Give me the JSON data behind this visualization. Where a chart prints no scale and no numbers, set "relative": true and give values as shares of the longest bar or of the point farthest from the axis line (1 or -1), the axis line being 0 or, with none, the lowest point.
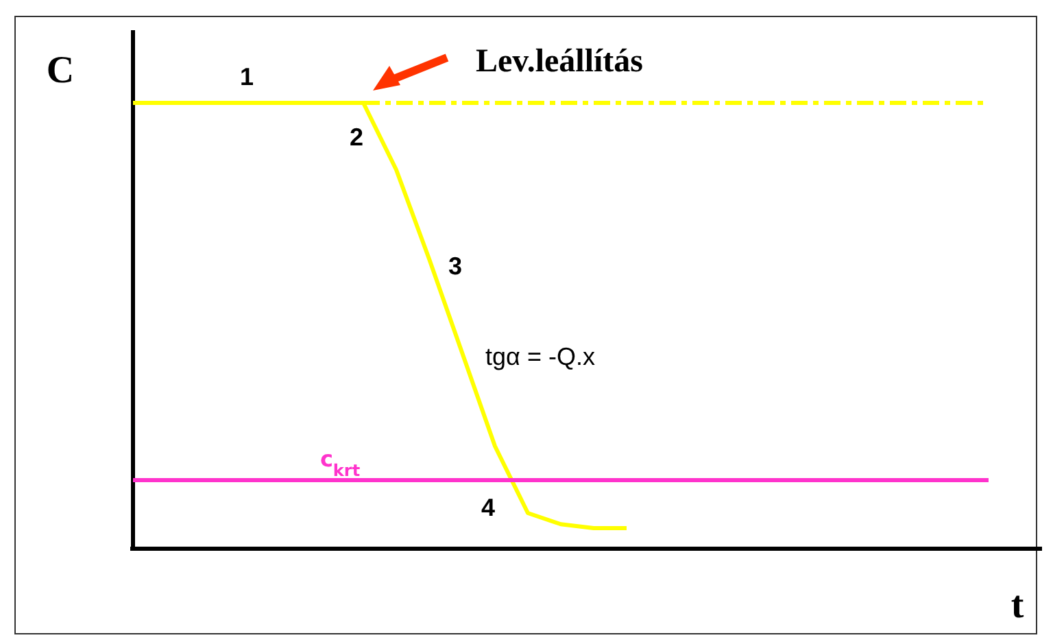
{
  "chart_data": {
    "type": "line",
    "relative": true,
    "xlabel": "t",
    "ylabel": "C",
    "categories": [
      null,
      null,
      null,
      null,
      null,
      null,
      null,
      null,
      null,
      null,
      null,
      null,
      null,
      null,
      null,
      null,
      null,
      null,
      null,
      null,
      null,
      null,
      null,
      null,
      null,
      null,
      null
    ],
    "series": [
      {
        "color": "#ffff00",
        "line_style": "solid",
        "values": [
          1,
          1,
          1,
          1,
          1,
          1,
          1,
          1,
          0.85,
          0.65,
          0.44,
          0.23,
          0.08,
          0.055,
          0.046,
          0.046,
          null,
          null,
          null,
          null,
          null,
          null,
          null,
          null,
          null,
          null,
          null
        ]
      },
      {
        "color": "#ffff00",
        "line_style": "dashed",
        "values": [
          null,
          null,
          null,
          null,
          null,
          null,
          null,
          1,
          1,
          1,
          1,
          1,
          1,
          1,
          1,
          1,
          1,
          1,
          1,
          1,
          1,
          1,
          1,
          1,
          1,
          1,
          1
        ]
      },
      {
        "name": "c$_{krt}$",
        "color": "#ff33cc",
        "line_style": "solid",
        "values": [
          0.154,
          0.154,
          0.154,
          0.154,
          0.154,
          0.154,
          0.154,
          0.154,
          0.154,
          0.154,
          0.154,
          0.154,
          0.154,
          0.154,
          0.154,
          0.154,
          0.154,
          0.154,
          0.154,
          0.154,
          0.154,
          0.154,
          0.154,
          0.154,
          0.154,
          0.154,
          0.154
        ]
      }
    ],
    "annotations": [
      "1",
      "2",
      "3",
      "4",
      "tgα = -Q.x",
      "Lev.leállítás"
    ],
    "marker": "none"
  }
}
